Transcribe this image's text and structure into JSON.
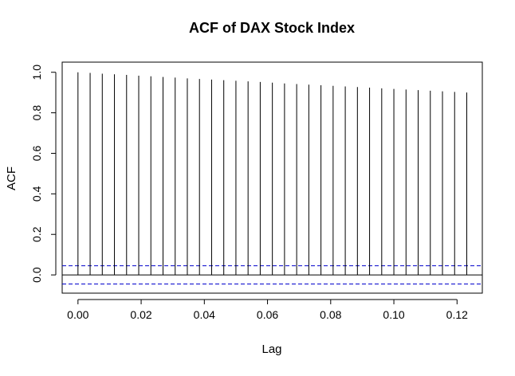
{
  "chart_data": {
    "type": "bar",
    "title": "ACF of DAX Stock Index",
    "xlabel": "Lag",
    "ylabel": "ACF",
    "xlim": [
      -0.005,
      0.128
    ],
    "ylim": [
      -0.09,
      1.05
    ],
    "x_ticks": [
      0.0,
      0.02,
      0.04,
      0.06,
      0.08,
      0.1,
      0.12
    ],
    "x_tick_labels": [
      "0.00",
      "0.02",
      "0.04",
      "0.06",
      "0.08",
      "0.10",
      "0.12"
    ],
    "y_ticks": [
      0.0,
      0.2,
      0.4,
      0.6,
      0.8,
      1.0
    ],
    "y_tick_labels": [
      "0.0",
      "0.2",
      "0.4",
      "0.6",
      "0.8",
      "1.0"
    ],
    "lags": [
      0.0,
      0.003846,
      0.007692,
      0.011538,
      0.015385,
      0.019231,
      0.023077,
      0.026923,
      0.030769,
      0.034615,
      0.038462,
      0.042308,
      0.046154,
      0.05,
      0.053846,
      0.057692,
      0.061538,
      0.065385,
      0.069231,
      0.073077,
      0.076923,
      0.080769,
      0.084615,
      0.088462,
      0.092308,
      0.096154,
      0.1,
      0.103846,
      0.107692,
      0.111538,
      0.115385,
      0.119231,
      0.123077
    ],
    "values": [
      1.0,
      0.997,
      0.993,
      0.99,
      0.987,
      0.983,
      0.98,
      0.977,
      0.974,
      0.97,
      0.967,
      0.964,
      0.961,
      0.958,
      0.955,
      0.952,
      0.949,
      0.945,
      0.942,
      0.939,
      0.936,
      0.933,
      0.93,
      0.927,
      0.924,
      0.921,
      0.918,
      0.915,
      0.912,
      0.909,
      0.906,
      0.903,
      0.9
    ],
    "confidence_bound": 0.045,
    "colors": {
      "bars": "#000000",
      "zero_line": "#000000",
      "confidence_lines": "#0000cc"
    }
  }
}
